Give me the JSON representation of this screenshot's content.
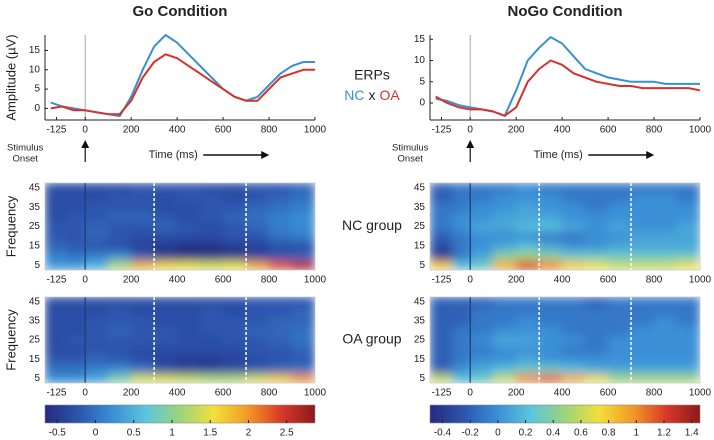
{
  "chart_data": [
    {
      "type": "line",
      "title": "Go Condition",
      "ylabel": "Amplitude (µV)",
      "x_label": "Time (ms)",
      "onset_label": [
        "Stimulus",
        "Onset"
      ],
      "onset": 0,
      "legend_title": "ERPs",
      "legend_separator": "x",
      "x": [
        -150,
        -100,
        -50,
        0,
        50,
        100,
        150,
        200,
        250,
        300,
        350,
        400,
        450,
        500,
        550,
        600,
        650,
        700,
        750,
        800,
        850,
        900,
        950,
        1000
      ],
      "series": [
        {
          "name": "NC",
          "color": "#3a8fd0",
          "values": [
            1.5,
            0.5,
            0,
            -0.5,
            -1,
            -1.5,
            -2,
            3,
            10,
            16,
            19,
            17,
            14,
            11,
            8,
            5,
            3,
            2,
            3,
            6,
            9,
            11,
            12,
            12
          ]
        },
        {
          "name": "OA",
          "color": "#d8302a",
          "values": [
            0,
            0.5,
            -0.5,
            -0.5,
            -1,
            -1.5,
            -1.5,
            2,
            8,
            12,
            14,
            13,
            11,
            9,
            7,
            5,
            3,
            2,
            2,
            5,
            8,
            9,
            10,
            10
          ]
        }
      ],
      "xlim": [
        -175,
        1000
      ],
      "ylim": [
        -3,
        19
      ],
      "xticks": [
        -125,
        0,
        200,
        400,
        600,
        800,
        1000
      ],
      "yticks": [
        0,
        5,
        10,
        15
      ]
    },
    {
      "type": "line",
      "title": "NoGo Condition",
      "x_label": "Time (ms)",
      "onset_label": [
        "Stimulus",
        "Onset"
      ],
      "onset": 0,
      "x": [
        -150,
        -100,
        -50,
        0,
        50,
        100,
        150,
        200,
        250,
        300,
        350,
        400,
        450,
        500,
        550,
        600,
        650,
        700,
        750,
        800,
        850,
        900,
        950,
        1000
      ],
      "series": [
        {
          "color": "#3a8fd0",
          "values": [
            1,
            0.5,
            -0.5,
            -1,
            -1.5,
            -2,
            -3,
            3,
            10,
            13,
            15.5,
            14,
            11,
            8,
            7,
            6,
            5.5,
            5,
            5,
            5,
            4.5,
            4.5,
            4.5,
            4.5
          ]
        },
        {
          "color": "#d8302a",
          "values": [
            1.5,
            0,
            -1,
            -1.5,
            -1.5,
            -2,
            -3,
            -1,
            5,
            8,
            10,
            9,
            7,
            6,
            5,
            4.5,
            4,
            4,
            3.5,
            3.5,
            3.5,
            3.5,
            3.5,
            3
          ]
        }
      ],
      "xlim": [
        -175,
        1000
      ],
      "ylim": [
        -4,
        16
      ],
      "xticks": [
        -125,
        0,
        200,
        400,
        600,
        800,
        1000
      ],
      "yticks": [
        0,
        5,
        10,
        15
      ]
    },
    {
      "type": "heatmap",
      "title": "NC group",
      "ylabel": "Frequency",
      "onset": 0,
      "markers": [
        300,
        700
      ],
      "xbins": [
        -175,
        -75,
        0,
        100,
        200,
        300,
        400,
        500,
        600,
        700,
        800,
        900,
        1000
      ],
      "y": [
        5,
        10,
        15,
        20,
        25,
        30,
        35,
        40,
        45
      ],
      "values": [
        [
          0.3,
          0.3,
          0.5,
          1.2,
          1.8,
          1.6,
          1.5,
          1.4,
          1.5,
          1.9,
          2.3,
          2.6
        ],
        [
          0.1,
          0.0,
          0.1,
          0.2,
          -0.2,
          -0.5,
          -0.6,
          -0.6,
          -0.5,
          -0.4,
          -0.2,
          -0.1
        ],
        [
          -0.1,
          -0.2,
          -0.2,
          -0.3,
          -0.4,
          -0.5,
          -0.6,
          -0.6,
          -0.5,
          -0.4,
          -0.3,
          -0.3
        ],
        [
          -0.2,
          -0.2,
          -0.1,
          -0.2,
          -0.3,
          -0.3,
          -0.3,
          -0.3,
          -0.2,
          -0.2,
          0.0,
          0.1
        ],
        [
          -0.2,
          -0.2,
          -0.1,
          -0.2,
          -0.2,
          -0.1,
          -0.2,
          -0.3,
          -0.2,
          -0.1,
          0.1,
          0.2
        ],
        [
          -0.3,
          -0.2,
          -0.2,
          -0.1,
          -0.1,
          -0.2,
          -0.3,
          -0.2,
          -0.1,
          0.0,
          0.1,
          0.2
        ],
        [
          -0.3,
          -0.3,
          -0.2,
          -0.2,
          -0.2,
          -0.3,
          -0.3,
          -0.2,
          -0.2,
          -0.1,
          0.0,
          0.1
        ],
        [
          -0.3,
          -0.3,
          -0.3,
          -0.2,
          -0.2,
          -0.3,
          -0.2,
          -0.2,
          -0.3,
          -0.2,
          -0.1,
          0.0
        ],
        [
          -0.3,
          -0.3,
          -0.3,
          -0.3,
          -0.2,
          -0.2,
          -0.2,
          -0.3,
          -0.3,
          -0.2,
          -0.2,
          -0.1
        ]
      ],
      "xlim": [
        -175,
        1000
      ],
      "ylim": [
        2.5,
        47.5
      ],
      "xticks": [
        -125,
        0,
        200,
        400,
        600,
        800,
        1000
      ],
      "yticks": [
        5,
        15,
        25,
        35,
        45
      ],
      "clim": [
        -0.66,
        2.87
      ],
      "colormap": [
        "#262a80",
        "#2c55ad",
        "#3a8fd6",
        "#5cc6dc",
        "#9bd47c",
        "#f2e03a",
        "#f29a25",
        "#d8382a",
        "#8b1a1a"
      ]
    },
    {
      "type": "heatmap",
      "title": "OA group",
      "ylabel": "Frequency",
      "onset": 0,
      "markers": [
        300,
        700
      ],
      "xbins": [
        -175,
        -75,
        0,
        100,
        200,
        300,
        400,
        500,
        600,
        700,
        800,
        900,
        1000
      ],
      "y": [
        5,
        10,
        15,
        20,
        25,
        30,
        35,
        40,
        45
      ],
      "values": [
        [
          0.2,
          0.2,
          0.4,
          0.9,
          1.4,
          1.4,
          1.3,
          1.2,
          1.2,
          1.4,
          1.7,
          2.0
        ],
        [
          0.0,
          0.0,
          0.1,
          0.2,
          0.0,
          -0.3,
          -0.4,
          -0.4,
          -0.3,
          -0.2,
          -0.1,
          0.0
        ],
        [
          -0.2,
          -0.2,
          -0.1,
          -0.2,
          -0.3,
          -0.4,
          -0.5,
          -0.5,
          -0.4,
          -0.3,
          -0.2,
          -0.2
        ],
        [
          -0.3,
          -0.3,
          -0.2,
          -0.2,
          -0.3,
          -0.3,
          -0.3,
          -0.3,
          -0.3,
          -0.2,
          -0.2,
          -0.1
        ],
        [
          -0.3,
          -0.2,
          -0.2,
          -0.2,
          -0.2,
          -0.2,
          -0.3,
          -0.3,
          -0.2,
          -0.2,
          -0.1,
          0.0
        ],
        [
          -0.3,
          -0.3,
          -0.2,
          -0.1,
          -0.2,
          -0.2,
          -0.3,
          -0.2,
          -0.2,
          -0.1,
          -0.1,
          0.0
        ],
        [
          -0.3,
          -0.3,
          -0.2,
          -0.2,
          -0.2,
          -0.3,
          -0.3,
          -0.2,
          -0.2,
          -0.2,
          -0.1,
          -0.1
        ],
        [
          -0.3,
          -0.3,
          -0.3,
          -0.2,
          -0.3,
          -0.3,
          -0.3,
          -0.2,
          -0.3,
          -0.2,
          -0.2,
          -0.1
        ],
        [
          -0.3,
          -0.3,
          -0.3,
          -0.3,
          -0.3,
          -0.3,
          -0.3,
          -0.3,
          -0.3,
          -0.2,
          -0.2,
          -0.2
        ]
      ],
      "xlim": [
        -175,
        1000
      ],
      "ylim": [
        2.5,
        47.5
      ],
      "xticks": [
        -125,
        0,
        200,
        400,
        600,
        800,
        1000
      ],
      "yticks": [
        5,
        15,
        25,
        35,
        45
      ],
      "clim": [
        -0.66,
        2.87
      ],
      "colormap": [
        "#262a80",
        "#2c55ad",
        "#3a8fd6",
        "#5cc6dc",
        "#9bd47c",
        "#f2e03a",
        "#f29a25",
        "#d8382a",
        "#8b1a1a"
      ],
      "cticks": [
        -0.5,
        0,
        0.5,
        1,
        1.5,
        2,
        2.5
      ]
    },
    {
      "type": "heatmap",
      "onset": 0,
      "markers": [
        300,
        700
      ],
      "xbins": [
        -175,
        -75,
        0,
        100,
        200,
        300,
        400,
        500,
        600,
        700,
        800,
        900,
        1000
      ],
      "y": [
        5,
        10,
        15,
        20,
        25,
        30,
        35,
        40,
        45
      ],
      "values": [
        [
          0.8,
          0.2,
          0.3,
          0.9,
          1.2,
          1.0,
          0.8,
          0.7,
          0.6,
          0.6,
          0.6,
          0.7
        ],
        [
          -0.4,
          -0.1,
          0.1,
          0.4,
          0.5,
          0.4,
          0.3,
          0.3,
          0.3,
          0.3,
          0.3,
          0.3
        ],
        [
          -0.3,
          -0.1,
          0.0,
          0.1,
          0.2,
          0.1,
          0.0,
          0.0,
          0.1,
          0.1,
          0.1,
          0.1
        ],
        [
          -0.2,
          -0.1,
          0.0,
          0.0,
          0.0,
          -0.1,
          -0.1,
          0.0,
          0.0,
          0.1,
          0.1,
          0.1
        ],
        [
          -0.1,
          0.0,
          0.1,
          0.1,
          0.2,
          0.2,
          0.1,
          0.0,
          0.1,
          0.0,
          0.0,
          0.1
        ],
        [
          -0.1,
          0.0,
          0.0,
          0.1,
          0.1,
          0.1,
          0.0,
          0.0,
          0.0,
          0.0,
          0.0,
          0.0
        ],
        [
          -0.1,
          -0.1,
          0.0,
          0.0,
          0.1,
          0.0,
          0.0,
          -0.1,
          0.0,
          0.0,
          0.0,
          0.0
        ],
        [
          -0.2,
          -0.1,
          -0.1,
          0.0,
          0.0,
          0.0,
          -0.1,
          -0.1,
          -0.1,
          0.0,
          0.0,
          -0.1
        ],
        [
          -0.2,
          -0.1,
          -0.1,
          -0.1,
          0.0,
          -0.1,
          -0.1,
          -0.1,
          -0.1,
          -0.1,
          -0.1,
          -0.1
        ]
      ],
      "xlim": [
        -175,
        1000
      ],
      "ylim": [
        2.5,
        47.5
      ],
      "xticks": [
        -125,
        0,
        200,
        400,
        600,
        800,
        1000
      ],
      "yticks": [
        5,
        15,
        25,
        35,
        45
      ],
      "clim": [
        -0.49,
        1.46
      ],
      "colormap": [
        "#262a80",
        "#2c55ad",
        "#3a8fd6",
        "#5cc6dc",
        "#9bd47c",
        "#f2e03a",
        "#f29a25",
        "#d8382a",
        "#8b1a1a"
      ]
    },
    {
      "type": "heatmap",
      "onset": 0,
      "markers": [
        300,
        700
      ],
      "xbins": [
        -175,
        -75,
        0,
        100,
        200,
        300,
        400,
        500,
        600,
        700,
        800,
        900,
        1000
      ],
      "y": [
        5,
        10,
        15,
        20,
        25,
        30,
        35,
        40,
        45
      ],
      "values": [
        [
          0.6,
          0.2,
          0.3,
          0.6,
          1.0,
          1.1,
          0.9,
          0.7,
          0.5,
          0.5,
          0.5,
          0.5
        ],
        [
          -0.2,
          0.0,
          0.1,
          0.2,
          0.3,
          0.3,
          0.2,
          0.1,
          0.1,
          0.1,
          0.1,
          0.1
        ],
        [
          -0.2,
          -0.1,
          0.0,
          0.0,
          0.1,
          0.0,
          0.0,
          0.0,
          0.0,
          0.0,
          0.0,
          0.0
        ],
        [
          -0.2,
          -0.1,
          -0.1,
          0.0,
          0.0,
          0.0,
          -0.1,
          -0.1,
          0.0,
          0.0,
          0.0,
          0.0
        ],
        [
          -0.2,
          -0.1,
          0.0,
          0.1,
          0.1,
          0.0,
          0.0,
          -0.1,
          0.0,
          0.0,
          0.0,
          0.0
        ],
        [
          -0.2,
          -0.1,
          -0.1,
          0.0,
          0.0,
          0.0,
          -0.1,
          -0.1,
          -0.1,
          0.0,
          0.0,
          0.0
        ],
        [
          -0.2,
          -0.2,
          -0.1,
          -0.1,
          0.0,
          -0.1,
          -0.1,
          -0.1,
          -0.1,
          -0.1,
          0.0,
          -0.1
        ],
        [
          -0.2,
          -0.2,
          -0.1,
          -0.1,
          -0.1,
          -0.1,
          -0.1,
          -0.1,
          -0.1,
          -0.1,
          -0.1,
          -0.1
        ],
        [
          -0.2,
          -0.2,
          -0.2,
          -0.1,
          -0.1,
          -0.1,
          -0.1,
          -0.2,
          -0.1,
          -0.1,
          -0.1,
          -0.1
        ]
      ],
      "xlim": [
        -175,
        1000
      ],
      "ylim": [
        2.5,
        47.5
      ],
      "xticks": [
        -125,
        0,
        200,
        400,
        600,
        800,
        1000
      ],
      "yticks": [
        5,
        15,
        25,
        35,
        45
      ],
      "clim": [
        -0.49,
        1.46
      ],
      "colormap": [
        "#262a80",
        "#2c55ad",
        "#3a8fd6",
        "#5cc6dc",
        "#9bd47c",
        "#f2e03a",
        "#f29a25",
        "#d8382a",
        "#8b1a1a"
      ],
      "cticks": [
        -0.4,
        -0.2,
        0,
        0.2,
        0.4,
        0.6,
        0.8,
        1,
        1.2,
        1.4
      ]
    }
  ]
}
